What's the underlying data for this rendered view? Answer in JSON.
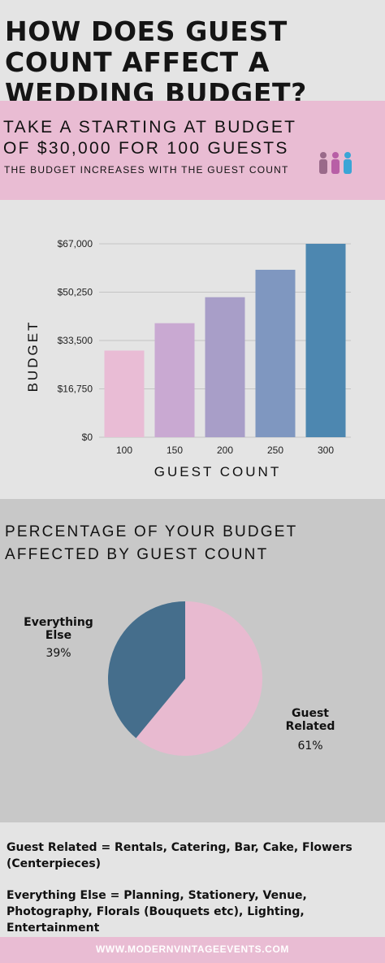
{
  "header": {
    "title": "HOW DOES GUEST COUNT AFFECT A WEDDING BUDGET?"
  },
  "intro": {
    "line1": "TAKE A STARTING AT BUDGET",
    "line2": "OF $30,000 FOR 100 GUESTS",
    "tagline": "THE BUDGET INCREASES WITH THE GUEST COUNT",
    "icon": "people-group-icon"
  },
  "colors": {
    "pink_band": "#e9bcd3",
    "bar_colors": [
      "#e9bcd5",
      "#c9a9d2",
      "#a89ec8",
      "#7f97c0",
      "#4d87b0"
    ],
    "pie_guest": "#e8bad0",
    "pie_else": "#456e8c"
  },
  "chart_data": [
    {
      "type": "bar",
      "categories": [
        "100",
        "150",
        "200",
        "250",
        "300"
      ],
      "values": [
        30000,
        39500,
        48500,
        58000,
        67000
      ],
      "xlabel": "GUEST COUNT",
      "ylabel": "BUDGET",
      "yticks": [
        "$0",
        "$16,750",
        "$33,500",
        "$50,250",
        "$67,000"
      ],
      "ytick_values": [
        0,
        16750,
        33500,
        50250,
        67000
      ],
      "ylim": [
        0,
        67000
      ],
      "grid": true
    },
    {
      "type": "pie",
      "title": "PERCENTAGE OF YOUR BUDGET AFFECTED BY GUEST COUNT",
      "slices": [
        {
          "label": "Guest Related",
          "value": 61,
          "text": "61%"
        },
        {
          "label": "Everything Else",
          "value": 39,
          "text": "39%"
        }
      ]
    }
  ],
  "notes": {
    "guest_related": "Guest Related = Rentals, Catering, Bar, Cake, Flowers (Centerpieces)",
    "everything_else": "Everything Else = Planning, Stationery, Venue, Photography, Florals (Bouquets etc), Lighting, Entertainment"
  },
  "footer": {
    "url": "WWW.MODERNVINTAGEEVENTS.COM"
  }
}
